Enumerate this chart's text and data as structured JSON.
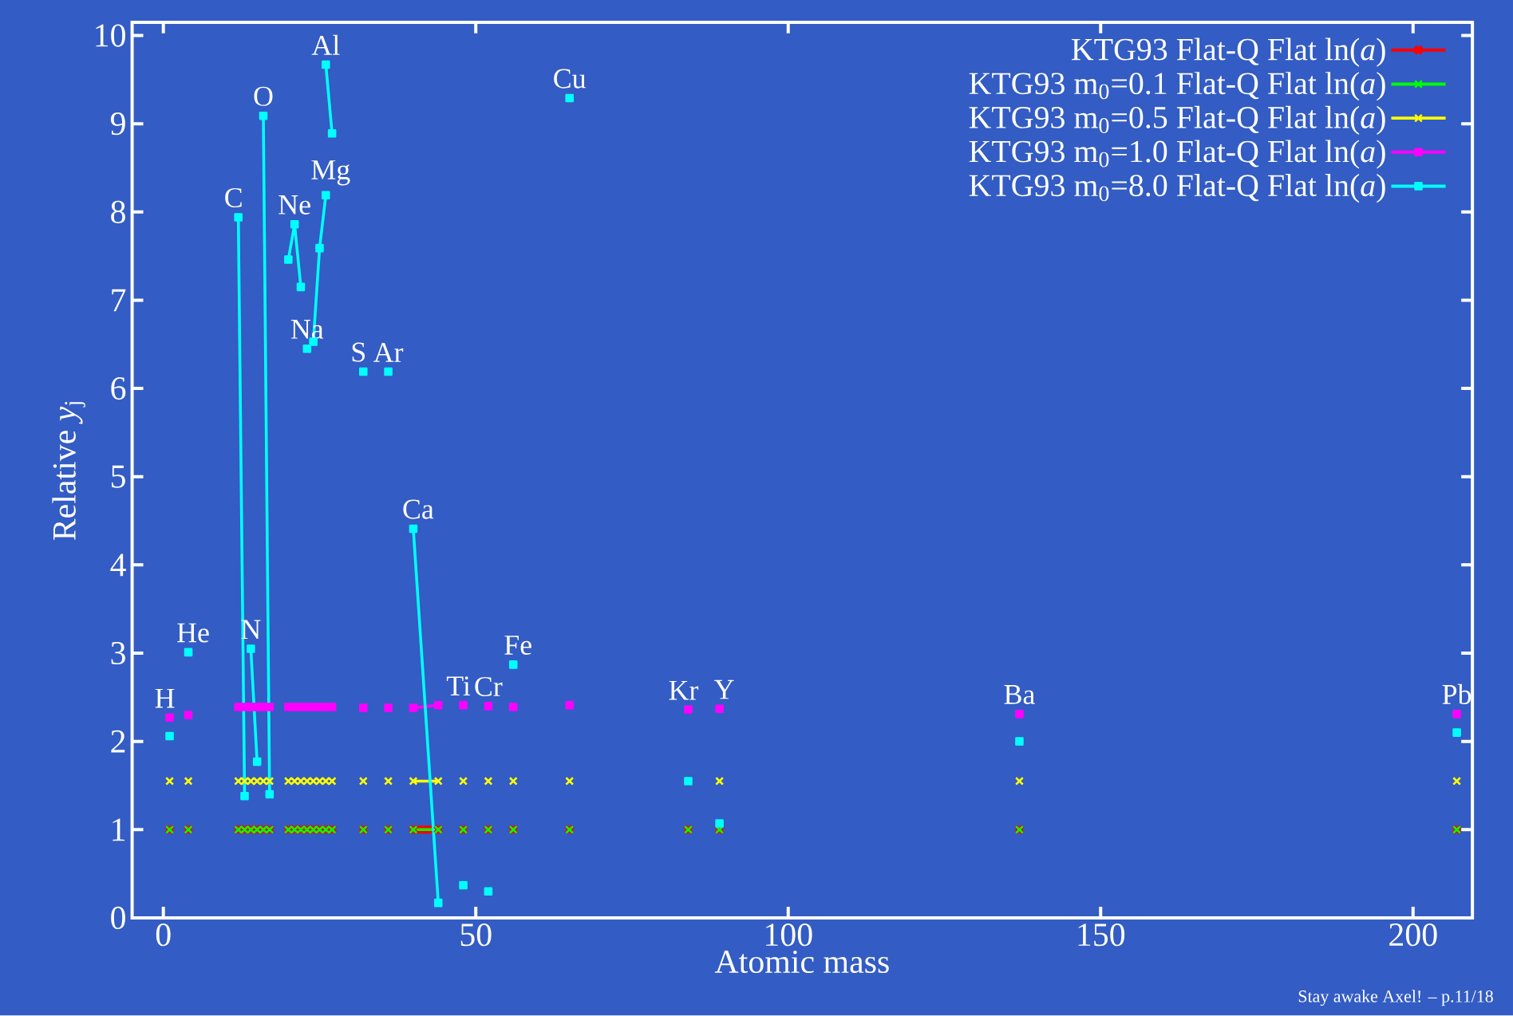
{
  "chart_data": {
    "type": "line",
    "xlabel": "Atomic mass",
    "ylabel": "Relative *y*$_{j}$",
    "xlim": [
      -5,
      209.5
    ],
    "ylim": [
      0,
      10.15
    ],
    "xticks": [
      0,
      50,
      100,
      150,
      200
    ],
    "yticks": [
      0,
      1,
      2,
      3,
      4,
      5,
      6,
      7,
      8,
      9,
      10
    ],
    "legend": "top right",
    "line_style": "solid",
    "x": [
      1,
      null,
      4,
      null,
      12,
      13,
      null,
      14,
      15,
      null,
      16,
      17,
      null,
      20,
      21,
      22,
      null,
      23,
      null,
      24,
      25,
      26,
      null,
      26,
      27,
      null,
      32,
      null,
      36,
      null,
      40,
      44,
      null,
      48,
      null,
      52,
      null,
      56,
      null,
      65,
      null,
      84,
      null,
      89,
      null,
      137,
      null,
      207
    ],
    "series": [
      {
        "name": "KTG93 Flat-Q Flat ln(*a*)",
        "color": "#ff0000",
        "marker": "cross",
        "x": [
          1,
          null,
          4,
          null,
          12,
          null,
          13,
          null,
          14,
          null,
          15,
          null,
          16,
          null,
          17,
          null,
          20,
          null,
          21,
          null,
          22,
          null,
          23,
          null,
          24,
          null,
          25,
          null,
          26,
          null,
          27,
          null,
          32,
          null,
          36,
          null,
          40,
          44,
          null,
          48,
          null,
          52,
          null,
          56,
          null,
          65,
          null,
          84,
          null,
          89,
          null,
          137,
          null,
          207
        ],
        "values": [
          1,
          null,
          1,
          null,
          1,
          null,
          1,
          null,
          1,
          null,
          1,
          null,
          1,
          null,
          1,
          null,
          1,
          null,
          1,
          null,
          1,
          null,
          1,
          null,
          1,
          null,
          1,
          null,
          1,
          null,
          1,
          null,
          1,
          null,
          1,
          null,
          1,
          1,
          null,
          1,
          null,
          1,
          null,
          1,
          null,
          1,
          null,
          1,
          null,
          1,
          null,
          1,
          null,
          1
        ]
      },
      {
        "name": "KTG93 m$_{0}$=0.1 Flat-Q Flat ln(*a*)",
        "color": "#00ff00",
        "marker": "cross",
        "x": [
          1,
          null,
          4,
          null,
          12,
          null,
          13,
          null,
          14,
          null,
          15,
          null,
          16,
          null,
          17,
          null,
          20,
          null,
          21,
          null,
          22,
          null,
          23,
          null,
          24,
          null,
          25,
          null,
          26,
          null,
          27,
          null,
          32,
          null,
          36,
          null,
          40,
          44,
          null,
          48,
          null,
          52,
          null,
          56,
          null,
          65,
          null,
          84,
          null,
          89,
          null,
          137,
          null,
          207
        ],
        "values": [
          1,
          null,
          1,
          null,
          1,
          null,
          1,
          null,
          1,
          null,
          1,
          null,
          1,
          null,
          1,
          null,
          1,
          null,
          1,
          null,
          1,
          null,
          1,
          null,
          1,
          null,
          1,
          null,
          1,
          null,
          1,
          null,
          1,
          null,
          1,
          null,
          1,
          1,
          null,
          1,
          null,
          1,
          null,
          1,
          null,
          1,
          null,
          1,
          null,
          1,
          null,
          1,
          null,
          1
        ]
      },
      {
        "name": "KTG93 m$_{0}$=0.5 Flat-Q Flat ln(*a*)",
        "color": "#ffff00",
        "marker": "cross",
        "x": [
          1,
          null,
          4,
          null,
          12,
          null,
          13,
          null,
          14,
          null,
          15,
          null,
          16,
          null,
          17,
          null,
          20,
          null,
          21,
          null,
          22,
          null,
          23,
          null,
          24,
          null,
          25,
          null,
          26,
          null,
          27,
          null,
          32,
          null,
          36,
          null,
          40,
          44,
          null,
          48,
          null,
          52,
          null,
          56,
          null,
          65,
          null,
          null,
          null,
          89,
          null,
          137,
          null,
          207
        ],
        "values": [
          1.55,
          null,
          1.55,
          null,
          1.55,
          null,
          1.55,
          null,
          1.55,
          null,
          1.55,
          null,
          1.55,
          null,
          1.55,
          null,
          1.55,
          null,
          1.55,
          null,
          1.55,
          null,
          1.55,
          null,
          1.55,
          null,
          1.55,
          null,
          1.55,
          null,
          1.55,
          null,
          1.55,
          null,
          1.55,
          null,
          1.55,
          1.55,
          null,
          1.55,
          null,
          1.55,
          null,
          1.55,
          null,
          1.55,
          null,
          null,
          null,
          1.55,
          null,
          1.55,
          null,
          1.55
        ]
      },
      {
        "name": "KTG93 m$_{0}$=1.0 Flat-Q Flat ln(*a*)",
        "color": "#ff00ff",
        "marker": "square",
        "x": [
          1,
          null,
          4,
          null,
          12,
          null,
          13,
          null,
          14,
          null,
          15,
          null,
          16,
          null,
          17,
          null,
          20,
          null,
          21,
          null,
          22,
          null,
          23,
          null,
          24,
          null,
          25,
          null,
          26,
          null,
          27,
          null,
          32,
          null,
          36,
          null,
          40,
          44,
          null,
          48,
          null,
          52,
          null,
          56,
          null,
          65,
          null,
          84,
          null,
          89,
          null,
          137,
          null,
          207
        ],
        "values": [
          2.27,
          null,
          2.3,
          null,
          2.39,
          null,
          2.39,
          null,
          2.39,
          null,
          2.39,
          null,
          2.39,
          null,
          2.39,
          null,
          2.39,
          null,
          2.39,
          null,
          2.39,
          null,
          2.39,
          null,
          2.39,
          null,
          2.39,
          null,
          2.39,
          null,
          2.39,
          null,
          2.38,
          null,
          2.38,
          null,
          2.38,
          2.41,
          null,
          2.41,
          null,
          2.4,
          null,
          2.39,
          null,
          2.41,
          null,
          2.36,
          null,
          2.37,
          null,
          2.31,
          null,
          2.31
        ]
      },
      {
        "name": "KTG93 m$_{0}$=8.0 Flat-Q Flat ln(*a*)",
        "color": "#00ffff",
        "marker": "square",
        "values": [
          2.06,
          null,
          3.01,
          null,
          7.94,
          1.38,
          null,
          3.05,
          1.77,
          null,
          9.09,
          1.4,
          null,
          7.46,
          7.86,
          7.15,
          null,
          6.45,
          null,
          6.53,
          7.59,
          8.19,
          null,
          9.67,
          8.89,
          null,
          6.19,
          null,
          6.19,
          null,
          4.41,
          0.17,
          null,
          0.37,
          null,
          0.3,
          null,
          2.87,
          null,
          9.29,
          null,
          1.55,
          null,
          1.07,
          null,
          2.0,
          null,
          2.1
        ]
      }
    ],
    "annotations": [
      {
        "text": "H",
        "x": 1,
        "y": 2.27
      },
      {
        "text": "He",
        "x": 4,
        "y": 3.01
      },
      {
        "text": "C",
        "x": 12,
        "y": 7.94
      },
      {
        "text": "N",
        "x": 14,
        "y": 3.05
      },
      {
        "text": "O",
        "x": 16,
        "y": 9.09
      },
      {
        "text": "Ne",
        "x": 21,
        "y": 7.86
      },
      {
        "text": "Na",
        "x": 23,
        "y": 6.45
      },
      {
        "text": "Mg",
        "x": 26,
        "y": 8.19
      },
      {
        "text": "Al",
        "x": 26,
        "y": 9.67
      },
      {
        "text": "S",
        "x": 32,
        "y": 6.19
      },
      {
        "text": "Ar",
        "x": 36,
        "y": 6.19
      },
      {
        "text": "Ca",
        "x": 40,
        "y": 4.41
      },
      {
        "text": "Ti",
        "x": 48,
        "y": 2.41
      },
      {
        "text": "Cr",
        "x": 52,
        "y": 2.4
      },
      {
        "text": "Fe",
        "x": 56,
        "y": 2.87
      },
      {
        "text": "Cu",
        "x": 65,
        "y": 9.29
      },
      {
        "text": "Kr",
        "x": 84,
        "y": 2.36
      },
      {
        "text": "Y",
        "x": 89,
        "y": 2.37
      },
      {
        "text": "Ba",
        "x": 137,
        "y": 2.31
      },
      {
        "text": "Pb",
        "x": 207,
        "y": 2.31
      },
      "Stay awake Axel! – p.11/18"
    ]
  }
}
